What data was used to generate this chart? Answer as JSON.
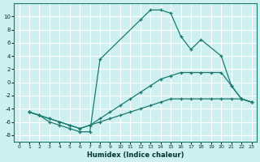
{
  "xlabel": "Humidex (Indice chaleur)",
  "background_color": "#cff0f0",
  "grid_color": "#ffffff",
  "line_color": "#1a7a6e",
  "series": [
    {
      "x": [
        1,
        2,
        3,
        4,
        5,
        6,
        7,
        8,
        12,
        13,
        14,
        15,
        16,
        17,
        18,
        20,
        21,
        22,
        23
      ],
      "y": [
        -4.5,
        -5.0,
        -6.0,
        -6.5,
        -7.0,
        -7.5,
        -7.5,
        3.5,
        9.5,
        11.0,
        11.0,
        10.5,
        7.0,
        5.0,
        6.5,
        4.0,
        -0.5,
        -2.5,
        -3.0
      ]
    },
    {
      "x": [
        1,
        2,
        3,
        4,
        5,
        6,
        7,
        8,
        9,
        10,
        11,
        12,
        13,
        14,
        15,
        16,
        17,
        18,
        19,
        20,
        21,
        22,
        23
      ],
      "y": [
        -4.5,
        -5.0,
        -5.5,
        -6.0,
        -6.5,
        -7.0,
        -6.5,
        -6.0,
        -5.5,
        -5.0,
        -4.5,
        -4.0,
        -3.5,
        -3.0,
        -2.5,
        -2.5,
        -2.5,
        -2.5,
        -2.5,
        -2.5,
        -2.5,
        -2.5,
        -3.0
      ]
    },
    {
      "x": [
        1,
        2,
        3,
        4,
        5,
        6,
        7,
        8,
        9,
        10,
        11,
        12,
        13,
        14,
        15,
        16,
        17,
        18,
        19,
        20,
        21,
        22,
        23
      ],
      "y": [
        -4.5,
        -5.0,
        -5.5,
        -6.0,
        -6.5,
        -7.0,
        -6.5,
        -5.5,
        -4.5,
        -3.5,
        -2.5,
        -1.5,
        -0.5,
        0.5,
        1.0,
        1.5,
        1.5,
        1.5,
        1.5,
        1.5,
        -0.5,
        -2.5,
        -3.0
      ]
    }
  ],
  "xlim": [
    -0.5,
    23.5
  ],
  "ylim": [
    -9,
    12
  ],
  "yticks": [
    -8,
    -6,
    -4,
    -2,
    0,
    2,
    4,
    6,
    8,
    10
  ],
  "xticks": [
    0,
    1,
    2,
    3,
    4,
    5,
    6,
    7,
    8,
    9,
    10,
    11,
    12,
    13,
    14,
    15,
    16,
    17,
    18,
    19,
    20,
    21,
    22,
    23
  ]
}
